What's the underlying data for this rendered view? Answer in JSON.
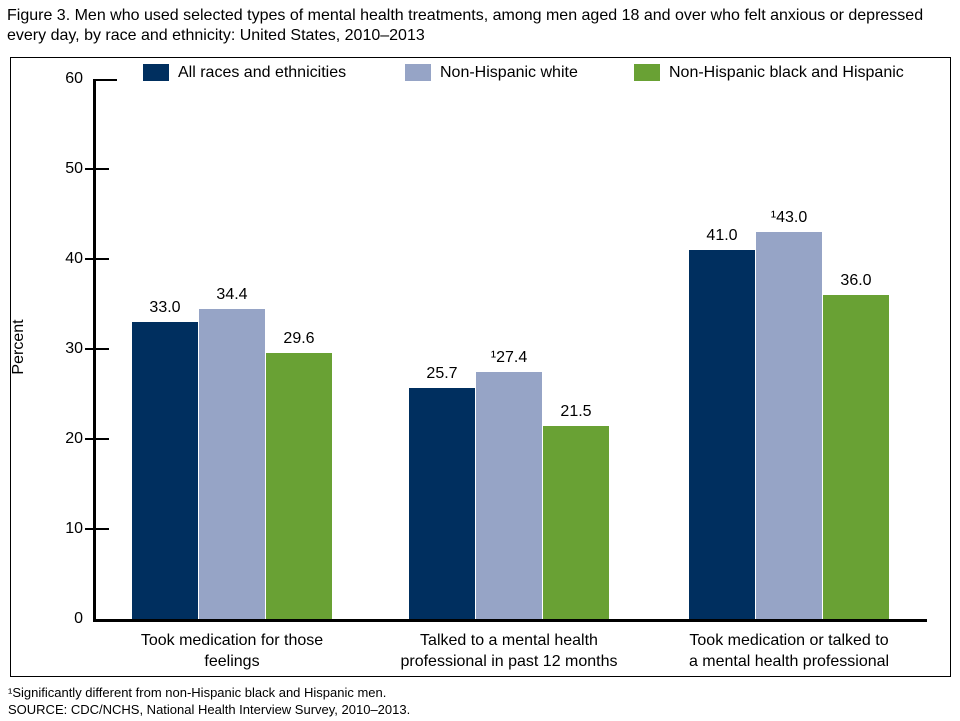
{
  "figure": {
    "title": "Figure 3. Men who used selected types of mental health treatments, among men aged 18 and over who felt anxious or depressed every day, by race and ethnicity: United States, 2010–2013",
    "footnote_significance": "¹Significantly different from non-Hispanic black and Hispanic men.",
    "source": "SOURCE: CDC/NCHS, National Health Interview Survey, 2010–2013."
  },
  "chart_data": {
    "type": "bar",
    "title": "Men who used selected types of mental health treatments, among men aged 18 and over who felt anxious or depressed every day, by race and ethnicity: United States, 2010–2013",
    "ylabel": "Percent",
    "xlabel": "",
    "ylim": [
      0,
      60
    ],
    "yticks": [
      0,
      10,
      20,
      30,
      40,
      50,
      60
    ],
    "grid": false,
    "legend_position": "top",
    "categories": [
      "Took medication for those feelings",
      "Talked to a mental health professional in past 12 months",
      "Took medication or talked to a mental health professional"
    ],
    "categories_lines": [
      "Took medication for those\nfeelings",
      "Talked to a mental health\nprofessional in past 12 months",
      "Took medication or talked to\na mental health professional"
    ],
    "series": [
      {
        "name": "All races and ethnicities",
        "color": "#002f5f",
        "values": [
          33.0,
          25.7,
          41.0
        ],
        "labels": [
          "33.0",
          "25.7",
          "41.0"
        ]
      },
      {
        "name": "Non-Hispanic white",
        "color": "#96a4c6",
        "values": [
          34.4,
          27.4,
          43.0
        ],
        "labels": [
          "34.4",
          "¹27.4",
          "¹43.0"
        ]
      },
      {
        "name": "Non-Hispanic black and Hispanic",
        "color": "#69a134",
        "values": [
          29.6,
          21.5,
          36.0
        ],
        "labels": [
          "29.6",
          "21.5",
          "36.0"
        ]
      }
    ]
  }
}
